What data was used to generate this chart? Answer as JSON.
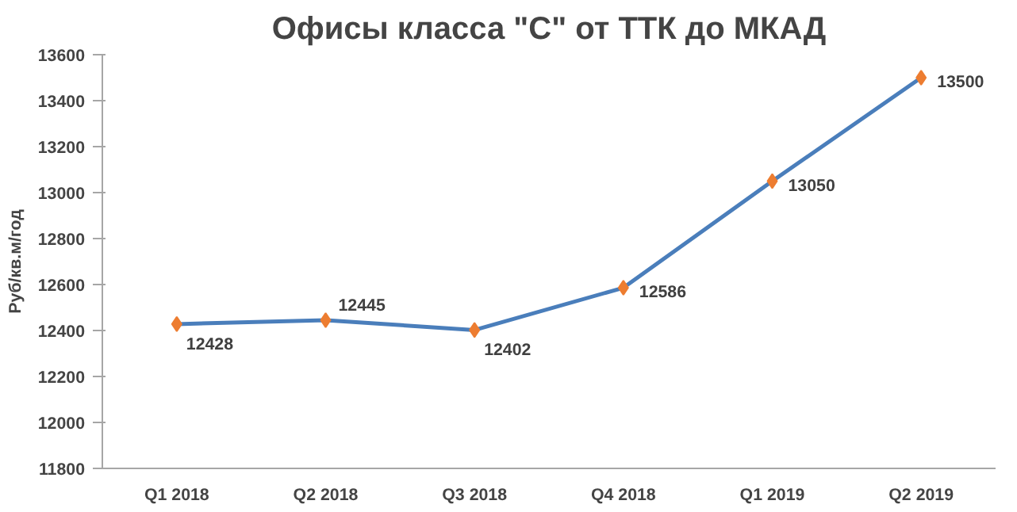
{
  "chart_data": {
    "type": "line",
    "title": "Офисы класса \"С\" от ТТК до МКАД",
    "ylabel": "Руб/кв.м/год",
    "categories": [
      "Q1 2018",
      "Q2 2018",
      "Q3 2018",
      "Q4 2018",
      "Q1 2019",
      "Q2 2019"
    ],
    "series": [
      {
        "color": "#4a7ebb",
        "colors": [
          "#ed7d31",
          "#ed7d31",
          "#ed7d31",
          "#ed7d31",
          "#ed7d31",
          "#ed7d31"
        ],
        "values": [
          12428,
          12445,
          12402,
          12586,
          13050,
          13500
        ]
      }
    ],
    "marker": "diamond",
    "ylim": [
      11800,
      13600
    ],
    "yticks": [
      11800,
      12000,
      12200,
      12400,
      12600,
      12800,
      13000,
      13200,
      13400,
      13600
    ],
    "grid": false,
    "data_labels": true
  }
}
